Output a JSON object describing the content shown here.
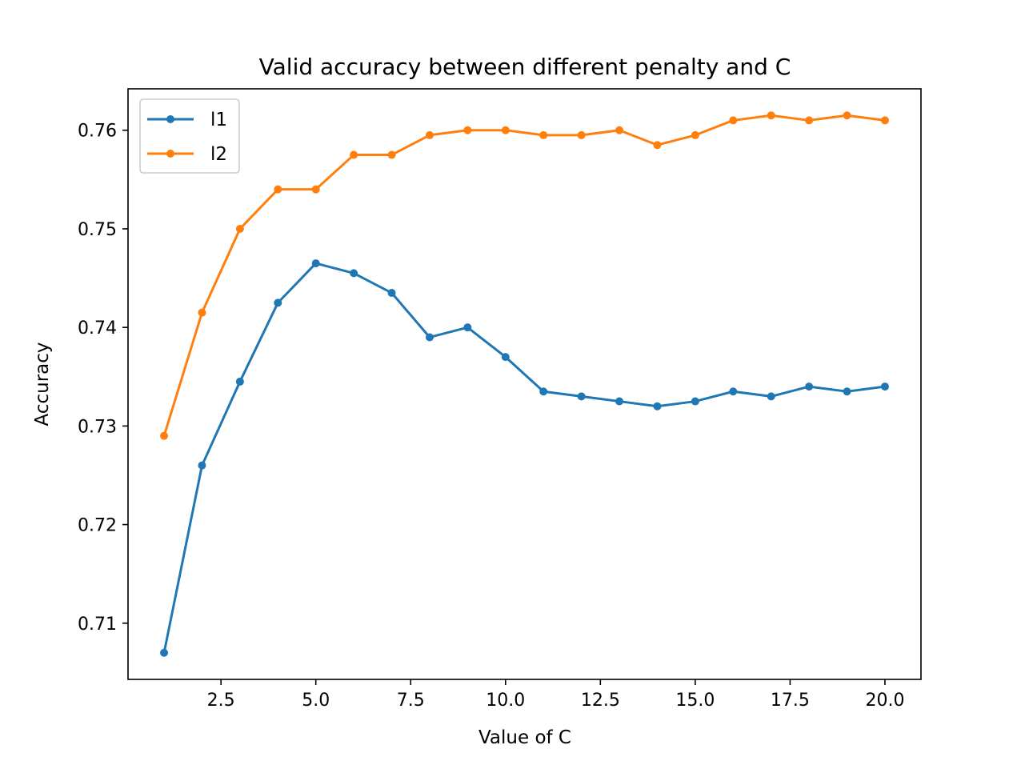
{
  "chart_data": {
    "type": "line",
    "title": "Valid accuracy between different penalty and C",
    "xlabel": "Value of C",
    "ylabel": "Accuracy",
    "x": [
      1,
      2,
      3,
      4,
      5,
      6,
      7,
      8,
      9,
      10,
      11,
      12,
      13,
      14,
      15,
      16,
      17,
      18,
      19,
      20
    ],
    "xlim": [
      0.05,
      20.95
    ],
    "ylim": [
      0.7043,
      0.7642
    ],
    "xticks": [
      2.5,
      5.0,
      7.5,
      10.0,
      12.5,
      15.0,
      17.5,
      20.0
    ],
    "xtick_labels": [
      "2.5",
      "5.0",
      "7.5",
      "10.0",
      "12.5",
      "15.0",
      "17.5",
      "20.0"
    ],
    "yticks": [
      0.71,
      0.72,
      0.73,
      0.74,
      0.75,
      0.76
    ],
    "ytick_labels": [
      "0.71",
      "0.72",
      "0.73",
      "0.74",
      "0.75",
      "0.76"
    ],
    "grid": false,
    "legend_position": "top-left",
    "series": [
      {
        "name": "l1",
        "color": "#1f77b4",
        "marker": "circle",
        "values": [
          0.707,
          0.726,
          0.7345,
          0.7425,
          0.7465,
          0.7455,
          0.7435,
          0.739,
          0.74,
          0.737,
          0.7335,
          0.733,
          0.7325,
          0.732,
          0.7325,
          0.7335,
          0.733,
          0.734,
          0.7335,
          0.734
        ]
      },
      {
        "name": "l2",
        "color": "#ff7f0e",
        "marker": "circle",
        "values": [
          0.729,
          0.7415,
          0.75,
          0.754,
          0.754,
          0.7575,
          0.7575,
          0.7595,
          0.76,
          0.76,
          0.7595,
          0.7595,
          0.76,
          0.7585,
          0.7595,
          0.761,
          0.7615,
          0.761,
          0.7615,
          0.761
        ]
      }
    ]
  }
}
